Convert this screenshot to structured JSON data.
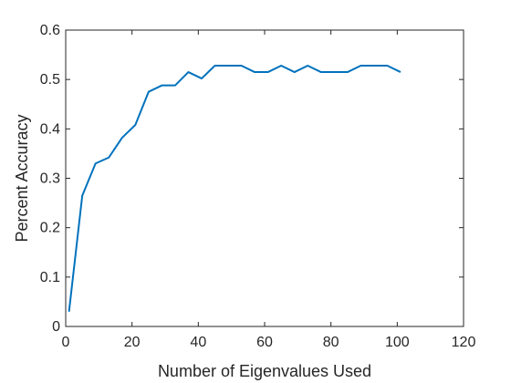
{
  "chart_data": {
    "type": "line",
    "xlabel": "Number of Eigenvalues Used",
    "ylabel": "Percent Accuracy",
    "xlim": [
      0,
      120
    ],
    "ylim": [
      0,
      0.6
    ],
    "xticks": [
      0,
      20,
      40,
      60,
      80,
      100,
      120
    ],
    "yticks": [
      0,
      0.1,
      0.2,
      0.3,
      0.4,
      0.5,
      0.6
    ],
    "xtick_labels": [
      "0",
      "20",
      "40",
      "60",
      "80",
      "100",
      "120"
    ],
    "ytick_labels": [
      "0",
      "0.1",
      "0.2",
      "0.3",
      "0.4",
      "0.5",
      "0.6"
    ],
    "grid": false,
    "series": [
      {
        "color": "#0072bd",
        "x": [
          1,
          5,
          9,
          13,
          17,
          21,
          25,
          29,
          33,
          37,
          41,
          45,
          49,
          53,
          57,
          61,
          65,
          69,
          73,
          77,
          81,
          85,
          89,
          93,
          97,
          101
        ],
        "y": [
          0.03,
          0.265,
          0.33,
          0.342,
          0.382,
          0.408,
          0.475,
          0.488,
          0.488,
          0.515,
          0.502,
          0.528,
          0.528,
          0.528,
          0.515,
          0.515,
          0.528,
          0.515,
          0.528,
          0.515,
          0.515,
          0.515,
          0.528,
          0.528,
          0.528,
          0.515
        ]
      }
    ]
  }
}
